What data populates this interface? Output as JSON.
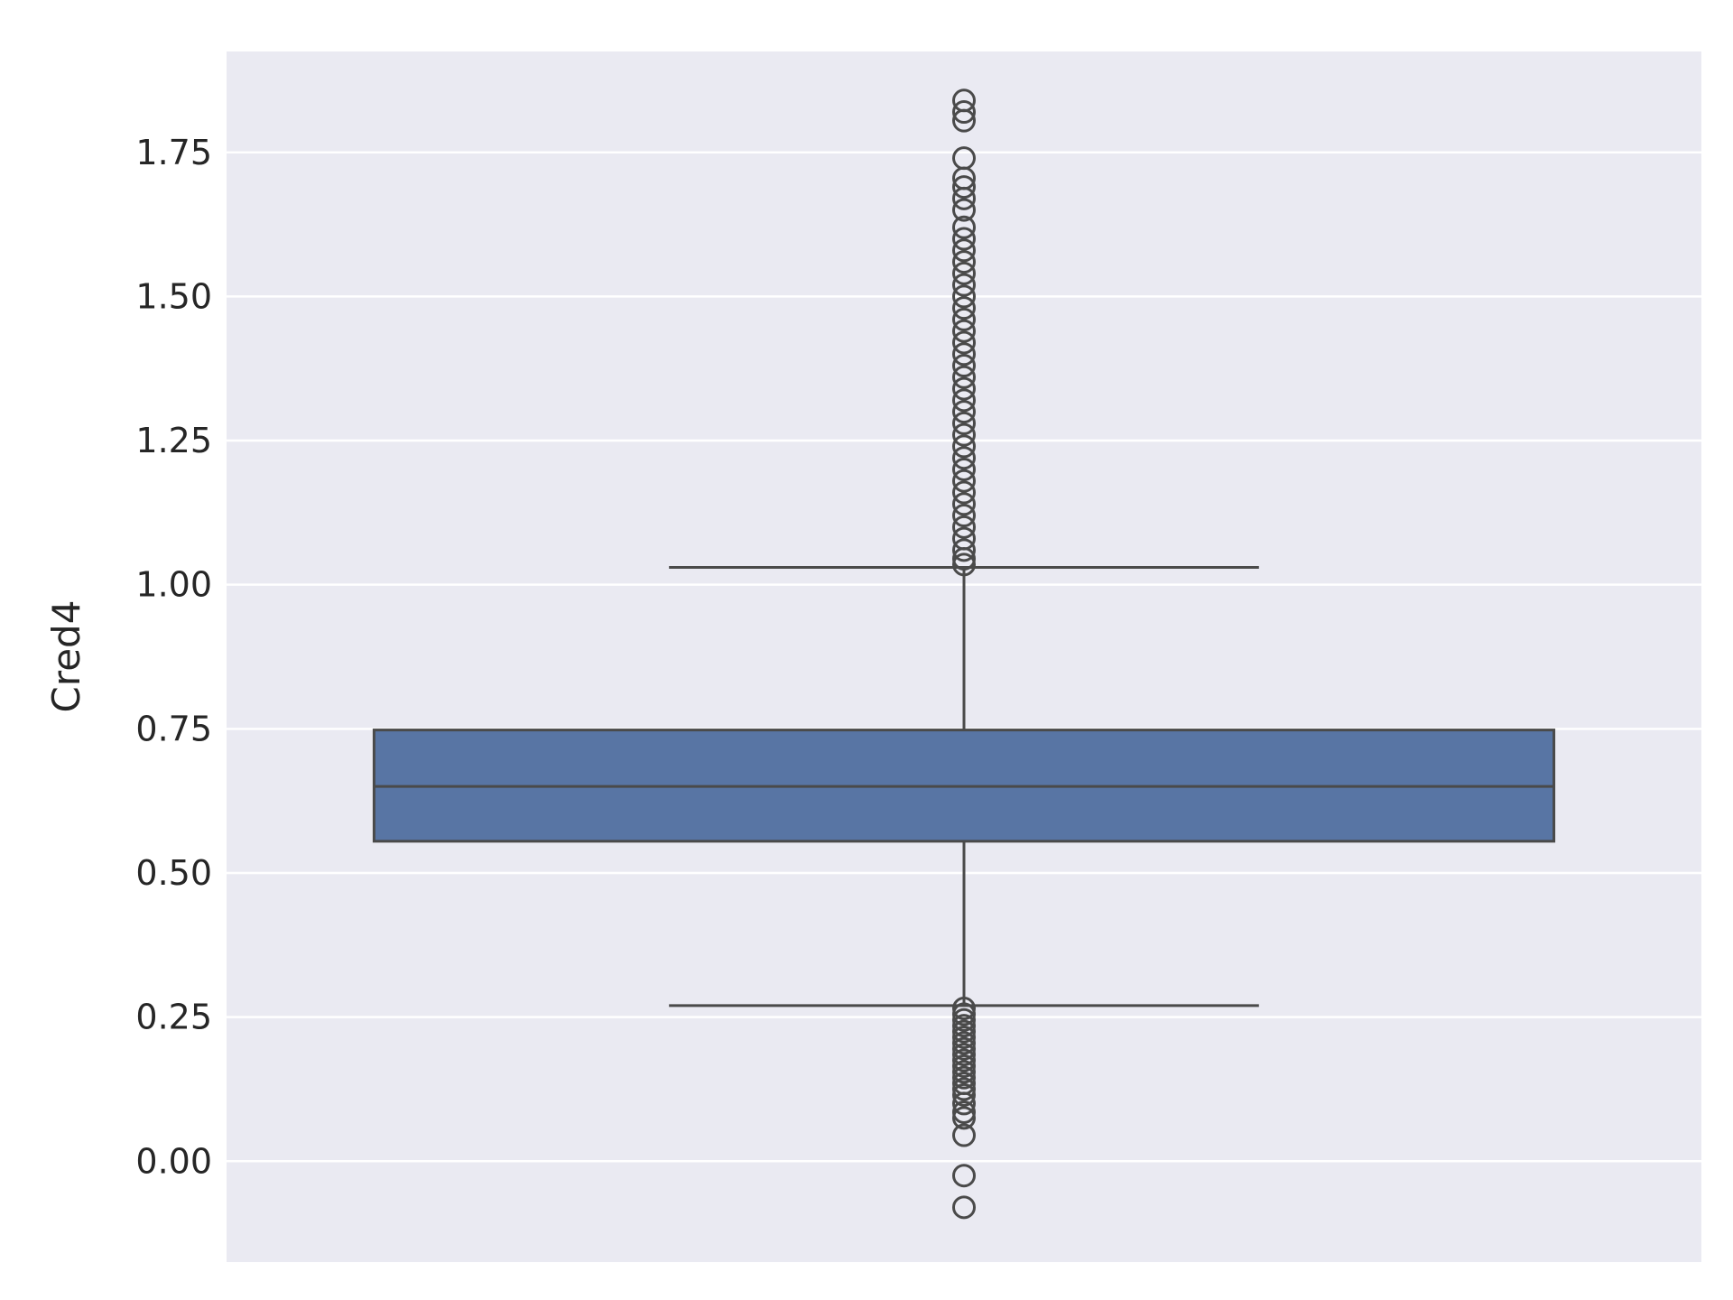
{
  "chart_data": {
    "type": "box",
    "ylabel": "Cred4",
    "xlabel": "",
    "title": "",
    "ylim": [
      -0.175,
      1.925
    ],
    "yticks": [
      0.0,
      0.25,
      0.5,
      0.75,
      1.0,
      1.25,
      1.5,
      1.75
    ],
    "ytick_labels": [
      "0.00",
      "0.25",
      "0.50",
      "0.75",
      "1.00",
      "1.25",
      "1.50",
      "1.75"
    ],
    "grid": true,
    "box": {
      "q1": 0.555,
      "median": 0.65,
      "q3": 0.748,
      "whisker_low": 0.27,
      "whisker_high": 1.03
    },
    "outliers_high": [
      1.84,
      1.82,
      1.805,
      1.74,
      1.705,
      1.69,
      1.67,
      1.65,
      1.62,
      1.6,
      1.58,
      1.56,
      1.54,
      1.52,
      1.5,
      1.48,
      1.46,
      1.44,
      1.42,
      1.4,
      1.38,
      1.36,
      1.34,
      1.32,
      1.3,
      1.28,
      1.26,
      1.24,
      1.22,
      1.2,
      1.18,
      1.16,
      1.14,
      1.12,
      1.1,
      1.08,
      1.06,
      1.045,
      1.035
    ],
    "outliers_low": [
      0.265,
      0.255,
      0.245,
      0.235,
      0.225,
      0.215,
      0.205,
      0.195,
      0.185,
      0.175,
      0.165,
      0.155,
      0.145,
      0.135,
      0.125,
      0.115,
      0.1,
      0.085,
      0.075,
      0.045,
      -0.025,
      -0.08
    ],
    "colors": {
      "box_fill": "#5875a4",
      "line": "#4a4a4a",
      "background": "#eaeaf2",
      "grid": "#ffffff"
    }
  }
}
